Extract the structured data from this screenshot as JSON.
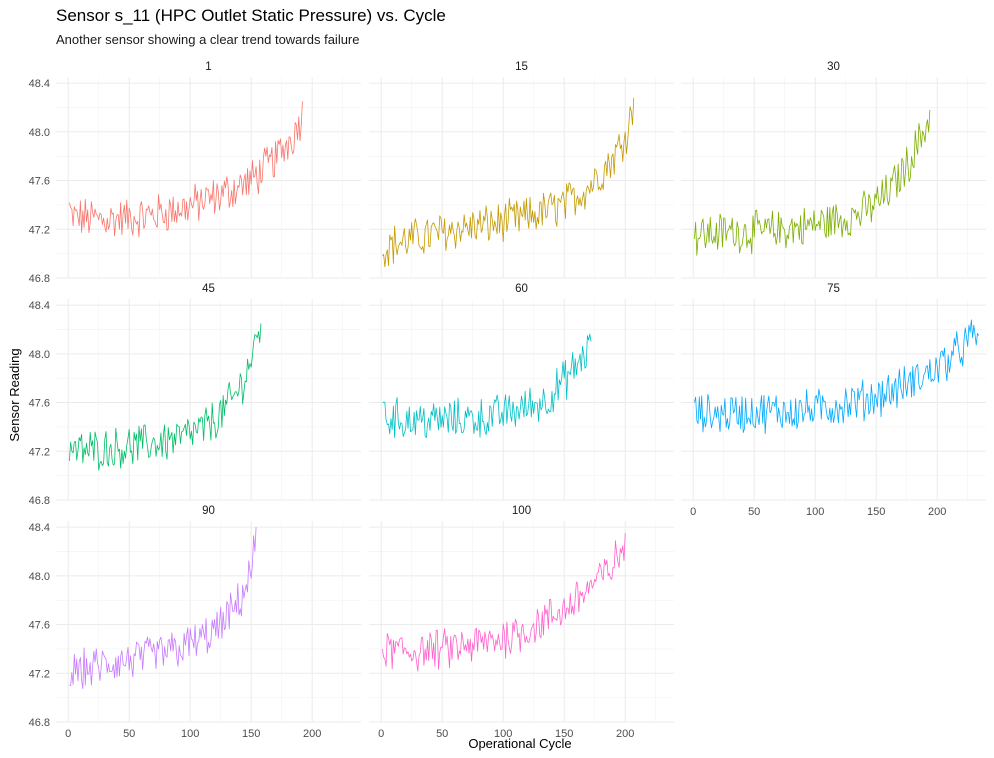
{
  "title": "Sensor s_11 (HPC Outlet Static Pressure) vs. Cycle",
  "subtitle": "Another sensor showing a clear trend towards failure",
  "chart_data": {
    "type": "line",
    "title": "Sensor s_11 (HPC Outlet Static Pressure) vs. Cycle",
    "subtitle": "Another sensor showing a clear trend towards failure",
    "xlabel": "Operational Cycle",
    "ylabel": "Sensor Reading",
    "xlim": [
      -10,
      240
    ],
    "ylim": [
      46.8,
      48.45
    ],
    "x_ticks": [
      0,
      50,
      100,
      150,
      200
    ],
    "y_ticks": [
      46.8,
      47.2,
      47.6,
      48.0,
      48.4
    ],
    "y_tick_labels": [
      "46.8",
      "47.2",
      "47.6",
      "48.0",
      "48.4"
    ],
    "facet_by": "unit",
    "grid": true,
    "legend": "none",
    "series": [
      {
        "name": "1",
        "color": "#F8766D",
        "max_cycle": 192,
        "trend": [
          [
            1,
            47.3
          ],
          [
            30,
            47.28
          ],
          [
            60,
            47.3
          ],
          [
            90,
            47.36
          ],
          [
            120,
            47.46
          ],
          [
            150,
            47.6
          ],
          [
            170,
            47.78
          ],
          [
            185,
            47.98
          ],
          [
            192,
            48.15
          ]
        ],
        "x": [
          1,
          192
        ],
        "y": [
          47.42,
          48.25
        ]
      },
      {
        "name": "15",
        "color": "#C49A00",
        "max_cycle": 207,
        "trend": [
          [
            1,
            47.05
          ],
          [
            30,
            47.13
          ],
          [
            60,
            47.2
          ],
          [
            90,
            47.24
          ],
          [
            120,
            47.3
          ],
          [
            150,
            47.4
          ],
          [
            170,
            47.55
          ],
          [
            190,
            47.78
          ],
          [
            200,
            47.97
          ],
          [
            207,
            48.2
          ]
        ],
        "x": [
          1,
          207
        ],
        "y": [
          46.98,
          48.28
        ]
      },
      {
        "name": "30",
        "color": "#7CAE00",
        "max_cycle": 194,
        "trend": [
          [
            1,
            47.15
          ],
          [
            30,
            47.18
          ],
          [
            60,
            47.18
          ],
          [
            90,
            47.22
          ],
          [
            120,
            47.28
          ],
          [
            140,
            47.34
          ],
          [
            160,
            47.5
          ],
          [
            175,
            47.72
          ],
          [
            185,
            47.92
          ],
          [
            194,
            48.12
          ]
        ],
        "x": [
          1,
          194
        ],
        "y": [
          47.12,
          48.18
        ]
      },
      {
        "name": "45",
        "color": "#00BE67",
        "max_cycle": 158,
        "trend": [
          [
            1,
            47.2
          ],
          [
            30,
            47.22
          ],
          [
            60,
            47.25
          ],
          [
            90,
            47.3
          ],
          [
            110,
            47.38
          ],
          [
            125,
            47.5
          ],
          [
            140,
            47.7
          ],
          [
            150,
            47.95
          ],
          [
            158,
            48.22
          ]
        ],
        "x": [
          1,
          158
        ],
        "y": [
          47.12,
          48.25
        ]
      },
      {
        "name": "60",
        "color": "#00BFC4",
        "max_cycle": 172,
        "trend": [
          [
            1,
            47.48
          ],
          [
            30,
            47.45
          ],
          [
            60,
            47.46
          ],
          [
            90,
            47.48
          ],
          [
            115,
            47.55
          ],
          [
            135,
            47.62
          ],
          [
            150,
            47.78
          ],
          [
            162,
            47.92
          ],
          [
            172,
            48.08
          ]
        ],
        "x": [
          1,
          172
        ],
        "y": [
          47.6,
          48.1
        ]
      },
      {
        "name": "75",
        "color": "#00A9FF",
        "max_cycle": 234,
        "trend": [
          [
            1,
            47.5
          ],
          [
            50,
            47.52
          ],
          [
            100,
            47.54
          ],
          [
            140,
            47.62
          ],
          [
            170,
            47.72
          ],
          [
            195,
            47.85
          ],
          [
            215,
            48.0
          ],
          [
            234,
            48.18
          ]
        ],
        "x": [
          1,
          234
        ],
        "y": [
          47.6,
          48.15
        ]
      },
      {
        "name": "90",
        "color": "#C77CFF",
        "max_cycle": 154,
        "trend": [
          [
            1,
            47.2
          ],
          [
            30,
            47.27
          ],
          [
            60,
            47.32
          ],
          [
            90,
            47.4
          ],
          [
            110,
            47.48
          ],
          [
            125,
            47.58
          ],
          [
            140,
            47.78
          ],
          [
            150,
            48.02
          ],
          [
            154,
            48.3
          ]
        ],
        "x": [
          1,
          154
        ],
        "y": [
          47.1,
          48.4
        ]
      },
      {
        "name": "100",
        "color": "#FF61CC",
        "max_cycle": 200,
        "trend": [
          [
            1,
            47.38
          ],
          [
            30,
            47.38
          ],
          [
            60,
            47.4
          ],
          [
            90,
            47.46
          ],
          [
            120,
            47.56
          ],
          [
            150,
            47.72
          ],
          [
            170,
            47.9
          ],
          [
            185,
            48.02
          ],
          [
            200,
            48.25
          ]
        ],
        "x": [
          1,
          200
        ],
        "y": [
          47.4,
          48.35
        ]
      }
    ]
  }
}
